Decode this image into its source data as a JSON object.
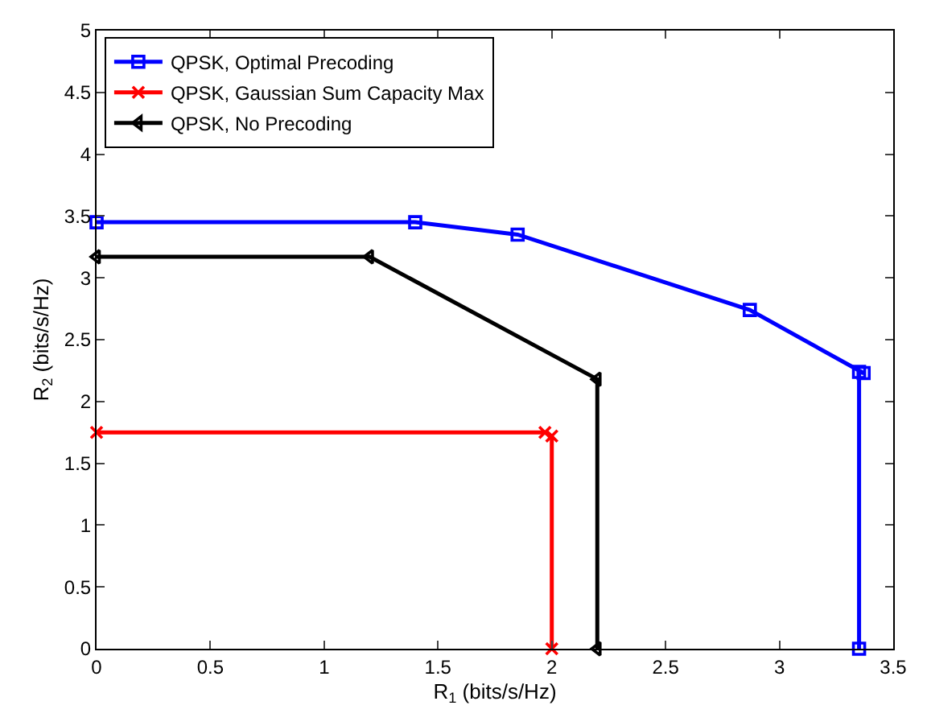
{
  "chart_data": {
    "type": "line",
    "xlabel": "R$_{1}$ (bits/s/Hz)",
    "ylabel": "R$_{2}$ (bits/s/Hz)",
    "xlim": [
      0,
      3.5
    ],
    "xticks": [
      0,
      0.5,
      1,
      1.5,
      2,
      2.5,
      3,
      3.5
    ],
    "ylim": [
      0,
      5
    ],
    "yticks": [
      0,
      0.5,
      1,
      1.5,
      2,
      2.5,
      3,
      3.5,
      4,
      4.5,
      5
    ],
    "grid": false,
    "legend": "top left",
    "line_style": "solid",
    "series": [
      {
        "name": "QPSK, Optimal Precoding",
        "color": "#0000ff",
        "marker": "square",
        "x": [
          0,
          1.4,
          1.85,
          2.87,
          3.37,
          3.35,
          3.35
        ],
        "values": [
          3.45,
          3.45,
          3.35,
          2.74,
          2.23,
          2.24,
          0
        ]
      },
      {
        "name": "QPSK, Gaussian Sum Capacity Max",
        "color": "#ff0000",
        "marker": "cross",
        "x": [
          0,
          1.97,
          2.0,
          2.0
        ],
        "values": [
          1.75,
          1.75,
          1.72,
          0
        ]
      },
      {
        "name": "QPSK, No Precoding",
        "color": "#000000",
        "marker": "triangle",
        "x": [
          0,
          1.2,
          2.2,
          2.2
        ],
        "values": [
          3.17,
          3.17,
          2.18,
          0
        ]
      }
    ]
  }
}
